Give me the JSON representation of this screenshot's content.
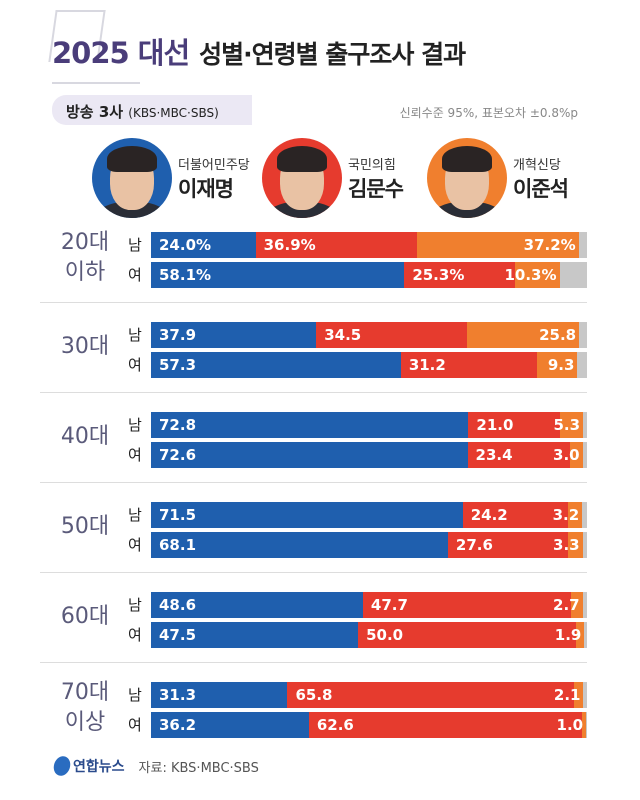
{
  "title": {
    "highlight": "2025 대선",
    "rest": "성별·연령별 출구조사 결과"
  },
  "subtitle": {
    "label": "방송 3사",
    "detail": "(KBS·MBC·SBS)"
  },
  "note": "신뢰수준 95%, 표본오차 ±0.8%p",
  "candidates": [
    {
      "party": "더불어민주당",
      "name": "이재명",
      "color": "#1f5fae"
    },
    {
      "party": "국민의힘",
      "name": "김문수",
      "color": "#e63b2e"
    },
    {
      "party": "개혁신당",
      "name": "이준석",
      "color": "#f07f2e"
    }
  ],
  "other_color": "#c8c8c8",
  "chart_data": {
    "type": "bar",
    "orientation": "horizontal-stacked",
    "xlim": [
      0,
      100
    ],
    "series_names": [
      "이재명",
      "김문수",
      "이준석"
    ],
    "groups": [
      {
        "age": [
          "20대",
          "이하"
        ],
        "rows": [
          {
            "gender": "남",
            "values": [
              24.0,
              36.9,
              37.2
            ],
            "labels": [
              "24.0%",
              "36.9%",
              "37.2%"
            ]
          },
          {
            "gender": "여",
            "values": [
              58.1,
              25.3,
              10.3
            ],
            "labels": [
              "58.1%",
              "25.3%",
              "10.3%"
            ]
          }
        ]
      },
      {
        "age": [
          "30대"
        ],
        "rows": [
          {
            "gender": "남",
            "values": [
              37.9,
              34.5,
              25.8
            ],
            "labels": [
              "37.9",
              "34.5",
              "25.8"
            ]
          },
          {
            "gender": "여",
            "values": [
              57.3,
              31.2,
              9.3
            ],
            "labels": [
              "57.3",
              "31.2",
              "9.3"
            ]
          }
        ]
      },
      {
        "age": [
          "40대"
        ],
        "rows": [
          {
            "gender": "남",
            "values": [
              72.8,
              21.0,
              5.3
            ],
            "labels": [
              "72.8",
              "21.0",
              "5.3"
            ]
          },
          {
            "gender": "여",
            "values": [
              72.6,
              23.4,
              3.0
            ],
            "labels": [
              "72.6",
              "23.4",
              "3.0"
            ]
          }
        ]
      },
      {
        "age": [
          "50대"
        ],
        "rows": [
          {
            "gender": "남",
            "values": [
              71.5,
              24.2,
              3.2
            ],
            "labels": [
              "71.5",
              "24.2",
              "3.2"
            ]
          },
          {
            "gender": "여",
            "values": [
              68.1,
              27.6,
              3.3
            ],
            "labels": [
              "68.1",
              "27.6",
              "3.3"
            ]
          }
        ]
      },
      {
        "age": [
          "60대"
        ],
        "rows": [
          {
            "gender": "남",
            "values": [
              48.6,
              47.7,
              2.7
            ],
            "labels": [
              "48.6",
              "47.7",
              "2.7"
            ]
          },
          {
            "gender": "여",
            "values": [
              47.5,
              50.0,
              1.9
            ],
            "labels": [
              "47.5",
              "50.0",
              "1.9"
            ]
          }
        ]
      },
      {
        "age": [
          "70대",
          "이상"
        ],
        "rows": [
          {
            "gender": "남",
            "values": [
              31.3,
              65.8,
              2.1
            ],
            "labels": [
              "31.3",
              "65.8",
              "2.1"
            ]
          },
          {
            "gender": "여",
            "values": [
              36.2,
              62.6,
              1.0
            ],
            "labels": [
              "36.2",
              "62.6",
              "1.0"
            ]
          }
        ]
      }
    ]
  },
  "footer": {
    "logo": "연합뉴스",
    "source": "자료: KBS·MBC·SBS"
  }
}
